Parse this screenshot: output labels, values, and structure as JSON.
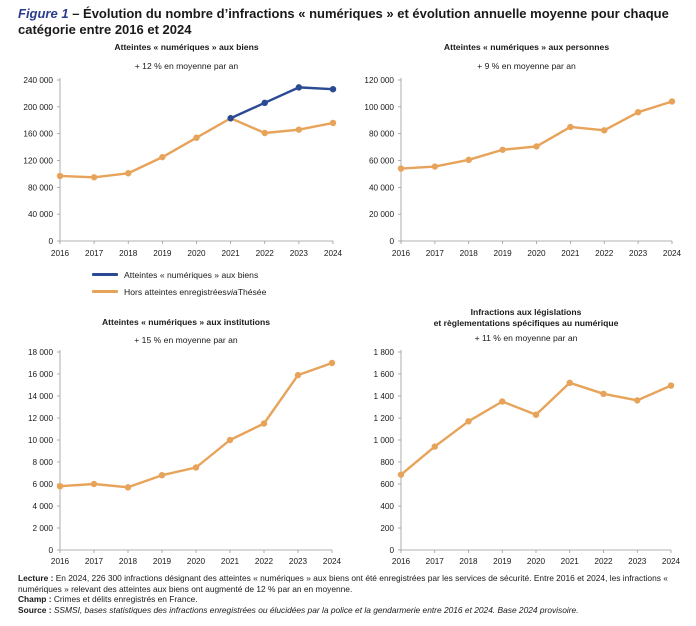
{
  "figure": {
    "label": "Figure 1",
    "title": " – Évolution du nombre d’infractions « numériques » et évolution annuelle moyenne pour chaque catégorie entre 2016 et 2024"
  },
  "colors": {
    "blue": "#2b4a94",
    "orange": "#e8a35a",
    "axis": "#9a9a9a",
    "text": "#1a1a1a"
  },
  "legend": {
    "items": [
      {
        "label": "Atteintes « numériques » aux biens",
        "color": "#2b4a94"
      },
      {
        "label_parts": [
          "Hors atteintes enregistrées ",
          "via",
          " Thésée"
        ],
        "color": "#e8a35a"
      }
    ]
  },
  "chart_data": [
    {
      "type": "line",
      "title": "Atteintes « numériques » aux biens",
      "subtitle": "+ 12 % en moyenne par an",
      "x": [
        "2016",
        "2017",
        "2018",
        "2019",
        "2020",
        "2021",
        "2022",
        "2023",
        "2024"
      ],
      "ylim": [
        0,
        240000
      ],
      "yticks": [
        "0",
        "40 000",
        "80 000",
        "120 000",
        "160 000",
        "200 000",
        "240 000"
      ],
      "series": [
        {
          "name": "Atteintes « numériques » aux biens",
          "color": "#2b4a94",
          "values": [
            null,
            null,
            null,
            null,
            null,
            183000,
            206000,
            229000,
            226300
          ]
        },
        {
          "name": "Hors atteintes enregistrées via Thésée",
          "color": "#e8a35a",
          "values": [
            97000,
            95000,
            101000,
            125000,
            154000,
            183000,
            161000,
            166000,
            176000
          ]
        }
      ]
    },
    {
      "type": "line",
      "title": "Atteintes « numériques » aux personnes",
      "subtitle": "+ 9 % en moyenne par an",
      "x": [
        "2016",
        "2017",
        "2018",
        "2019",
        "2020",
        "2021",
        "2022",
        "2023",
        "2024"
      ],
      "ylim": [
        0,
        120000
      ],
      "yticks": [
        "0",
        "20 000",
        "40 000",
        "60 000",
        "80 000",
        "100 000",
        "120 000"
      ],
      "series": [
        {
          "color": "#e8a35a",
          "values": [
            54000,
            55500,
            60500,
            68000,
            70500,
            85000,
            82500,
            96000,
            104000
          ]
        }
      ]
    },
    {
      "type": "line",
      "title": "Atteintes « numériques » aux institutions",
      "subtitle": "+ 15 % en moyenne par an",
      "x": [
        "2016",
        "2017",
        "2018",
        "2019",
        "2020",
        "2021",
        "2022",
        "2023",
        "2024"
      ],
      "ylim": [
        0,
        18000
      ],
      "yticks": [
        "0",
        "2 000",
        "4 000",
        "6 000",
        "8 000",
        "10 000",
        "12 000",
        "14 000",
        "16 000",
        "18 000"
      ],
      "series": [
        {
          "color": "#e8a35a",
          "values": [
            5800,
            6000,
            5700,
            6800,
            7500,
            10000,
            11500,
            15900,
            17000
          ]
        }
      ]
    },
    {
      "type": "line",
      "title_lines": [
        "Infractions aux législations",
        "et règlementations spécifiques au numérique"
      ],
      "subtitle": "+ 11 % en moyenne par an",
      "x": [
        "2016",
        "2017",
        "2018",
        "2019",
        "2020",
        "2021",
        "2022",
        "2023",
        "2024"
      ],
      "ylim": [
        0,
        1800
      ],
      "yticks": [
        "0",
        "200",
        "400",
        "600",
        "800",
        "1 000",
        "1 200",
        "1 400",
        "1 600",
        "1 800"
      ],
      "series": [
        {
          "color": "#e8a35a",
          "values": [
            685,
            940,
            1170,
            1350,
            1230,
            1520,
            1420,
            1360,
            1495
          ]
        }
      ]
    }
  ],
  "footer": {
    "lecture_label": "Lecture :",
    "lecture_text": " En 2024, 226 300 infractions désignant des atteintes « numériques » aux biens ont été enregistrées par les services de sécurité. Entre 2016 et 2024, les infractions « numériques » relevant des atteintes aux biens ont augmenté de 12 % par an en moyenne.",
    "champ_label": "Champ :",
    "champ_text": " Crimes et délits enregistrés en France.",
    "source_label": "Source :",
    "source_text": " SSMSI, bases statistiques des infractions enregistrées ou élucidées par la police et la gendarmerie entre 2016 et 2024. Base 2024 provisoire."
  }
}
